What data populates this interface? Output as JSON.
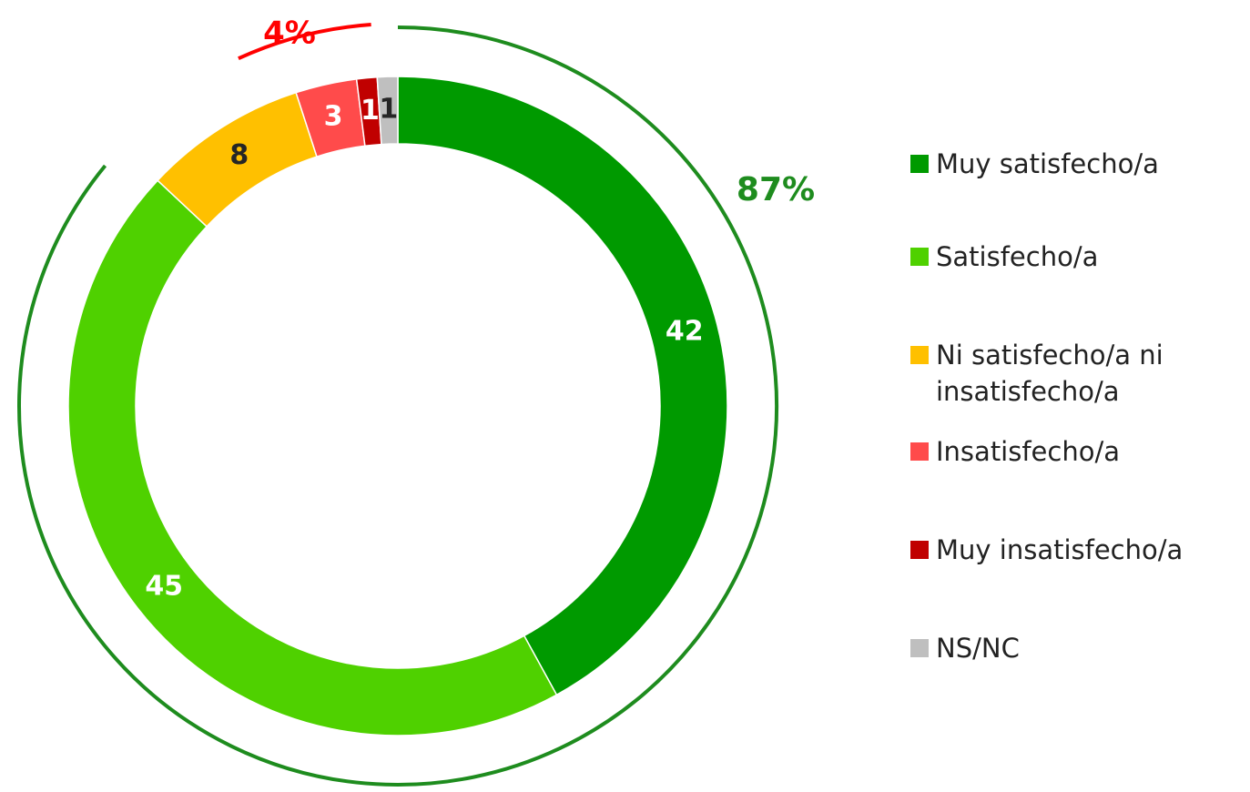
{
  "chart_data": {
    "type": "donut",
    "categories": [
      "Muy satisfecho/a",
      "Satisfecho/a",
      "Ni satisfecho/a ni insatisfecho/a",
      "Insatisfecho/a",
      "Muy insatisfecho/a",
      "NS/NC"
    ],
    "values": [
      42,
      45,
      8,
      3,
      1,
      1
    ],
    "colors": [
      "#009a00",
      "#4fd100",
      "#ffc000",
      "#ff4b4b",
      "#c00000",
      "#bfbfbf"
    ],
    "label_colors": [
      "#ffffff",
      "#ffffff",
      "#262626",
      "#ffffff",
      "#ffffff",
      "#262626"
    ],
    "annotations": [
      {
        "text": "87%",
        "color": "#1e8c1e"
      },
      {
        "text": "4%",
        "color": "#ff0000"
      }
    ],
    "legend": "right"
  }
}
